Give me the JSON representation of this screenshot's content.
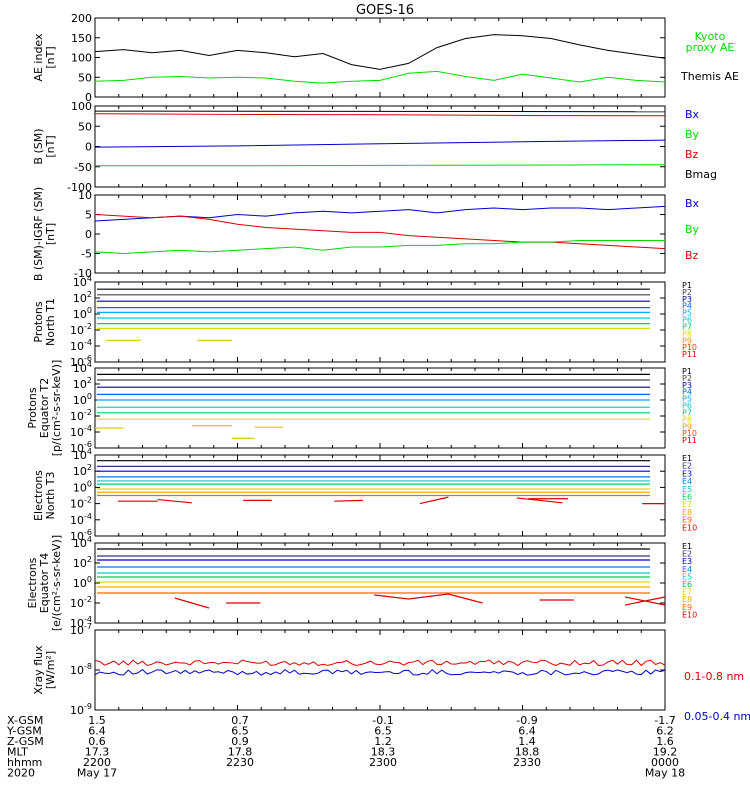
{
  "title": "GOES-16",
  "colors": {
    "black": "#000000",
    "red": "#dd0000",
    "green": "#00dd00",
    "blue": "#0000cc",
    "p": [
      "#000000",
      "#444444",
      "#0000aa",
      "#0066ff",
      "#00aaff",
      "#00cccc",
      "#00cc66",
      "#dddd00",
      "#ff9900",
      "#ff4400",
      "#dd0000"
    ],
    "e": [
      "#000000",
      "#333388",
      "#0000cc",
      "#0077ff",
      "#00cccc",
      "#00cc66",
      "#dddd00",
      "#ffaa00",
      "#ff6600",
      "#dd0000",
      "#aa0000"
    ]
  },
  "time_axis": {
    "xlabels": [
      "X-GSM",
      "Y-GSM",
      "Z-GSM",
      "MLT",
      "hhmm",
      "2020"
    ],
    "columns": [
      [
        "1.5",
        "6.4",
        "0.6",
        "17.3",
        "2200",
        "May 17"
      ],
      [
        "0.7",
        "6.5",
        "0.9",
        "17.8",
        "2230",
        ""
      ],
      [
        "-0.1",
        "6.5",
        "1.2",
        "18.3",
        "2300",
        ""
      ],
      [
        "-0.9",
        "6.4",
        "1.4",
        "18.8",
        "2330",
        ""
      ],
      [
        "-1.7",
        "6.2",
        "1.6",
        "19.2",
        "0000",
        "May 18"
      ]
    ]
  },
  "chart_data": [
    {
      "type": "line",
      "id": "ae",
      "ylabel": [
        "AE index",
        "[nT]"
      ],
      "ylim": [
        0,
        200
      ],
      "yticks": [
        "0",
        "50",
        "100",
        "150",
        "200"
      ],
      "legend": [
        "Kyoto proxy AE",
        "Themis AE"
      ],
      "series": [
        {
          "name": "Themis AE",
          "x": [
            0,
            0.05,
            0.1,
            0.15,
            0.2,
            0.25,
            0.3,
            0.35,
            0.4,
            0.45,
            0.5,
            0.55,
            0.6,
            0.65,
            0.7,
            0.75,
            0.8,
            0.85,
            0.9,
            0.95,
            1.0
          ],
          "y": [
            115,
            120,
            112,
            118,
            105,
            118,
            112,
            102,
            110,
            82,
            70,
            85,
            125,
            148,
            158,
            155,
            148,
            132,
            118,
            108,
            98
          ]
        },
        {
          "name": "Kyoto proxy AE",
          "x": [
            0,
            0.05,
            0.1,
            0.15,
            0.2,
            0.25,
            0.3,
            0.35,
            0.4,
            0.45,
            0.5,
            0.55,
            0.6,
            0.65,
            0.7,
            0.75,
            0.8,
            0.85,
            0.9,
            0.95,
            1.0
          ],
          "y": [
            40,
            42,
            50,
            52,
            48,
            50,
            48,
            40,
            35,
            40,
            42,
            60,
            65,
            52,
            42,
            58,
            48,
            38,
            50,
            42,
            38
          ]
        }
      ]
    },
    {
      "type": "line",
      "id": "bsm",
      "ylabel": [
        "B (SM)",
        "[nT]"
      ],
      "ylim": [
        -120,
        120
      ],
      "yticks": [
        "-100",
        "-50",
        "0",
        "50",
        "100"
      ],
      "legend": [
        "Bx",
        "By",
        "Bz",
        "Bmag"
      ],
      "series": [
        {
          "name": "Bmag",
          "x": [
            0,
            1
          ],
          "y": [
            105,
            103
          ]
        },
        {
          "name": "Bz",
          "x": [
            0,
            0.25,
            0.5,
            0.75,
            1
          ],
          "y": [
            97,
            95,
            94,
            92,
            91
          ]
        },
        {
          "name": "Bx",
          "x": [
            0,
            0.25,
            0.5,
            0.75,
            1
          ],
          "y": [
            -2,
            2,
            8,
            14,
            19
          ]
        },
        {
          "name": "By",
          "x": [
            0,
            0.25,
            0.5,
            0.75,
            1
          ],
          "y": [
            -57,
            -57,
            -56,
            -55,
            -54
          ]
        }
      ]
    },
    {
      "type": "line",
      "id": "bigrf",
      "ylabel": [
        "B (SM)-IGRF (SM)",
        "[nT]"
      ],
      "ylim": [
        -12,
        12
      ],
      "yticks": [
        "-10",
        "-5",
        "0",
        "5",
        "10"
      ],
      "legend": [
        "Bx",
        "By",
        "Bz"
      ],
      "series": [
        {
          "name": "Bx",
          "x": [
            0,
            0.05,
            0.1,
            0.15,
            0.2,
            0.25,
            0.3,
            0.35,
            0.4,
            0.45,
            0.5,
            0.55,
            0.6,
            0.65,
            0.7,
            0.75,
            0.8,
            0.85,
            0.9,
            0.95,
            1.0
          ],
          "y": [
            4,
            4.5,
            5,
            5.5,
            5,
            6,
            5.5,
            6.5,
            7,
            6.5,
            7,
            7.5,
            6.5,
            7.5,
            8,
            7.5,
            8,
            8,
            7.5,
            8,
            8.5
          ]
        },
        {
          "name": "Bz",
          "x": [
            0,
            0.05,
            0.1,
            0.15,
            0.2,
            0.25,
            0.3,
            0.35,
            0.4,
            0.45,
            0.5,
            0.55,
            0.6,
            0.65,
            0.7,
            0.75,
            0.8,
            0.85,
            0.9,
            0.95,
            1.0
          ],
          "y": [
            6,
            5.5,
            5,
            5.5,
            4.5,
            3,
            2,
            1.5,
            1,
            0.5,
            0.5,
            -0.5,
            -1,
            -1.5,
            -2,
            -2.5,
            -2.5,
            -3,
            -3.5,
            -4,
            -4.5
          ]
        },
        {
          "name": "By",
          "x": [
            0,
            0.05,
            0.1,
            0.15,
            0.2,
            0.25,
            0.3,
            0.35,
            0.4,
            0.45,
            0.5,
            0.55,
            0.6,
            0.65,
            0.7,
            0.75,
            0.8,
            0.85,
            0.9,
            0.95,
            1.0
          ],
          "y": [
            -5.5,
            -6,
            -5.5,
            -5,
            -5.5,
            -5,
            -4.5,
            -4,
            -5,
            -4,
            -4,
            -3.5,
            -3.5,
            -3,
            -3,
            -2.5,
            -2.5,
            -2,
            -2,
            -2,
            -2
          ]
        }
      ]
    },
    {
      "type": "line",
      "id": "pt1",
      "ylabel": [
        "Protons",
        "North T1"
      ],
      "log": true,
      "ylim": [
        -6,
        4
      ],
      "yticks": [
        "10^-6",
        "10^-4",
        "10^-2",
        "10^0",
        "10^2",
        "10^4"
      ],
      "legend": [
        "P1",
        "P2",
        "P3",
        "P4",
        "P5",
        "P6",
        "P7",
        "P8",
        "P9",
        "P10",
        "P11"
      ],
      "levels": [
        3.1,
        2.4,
        1.6,
        0.8,
        0.2,
        -0.5,
        -1.2,
        -1.8
      ],
      "fragments": [
        {
          "x": [
            0.02,
            0.08
          ],
          "y": [
            -3.3,
            -3.3
          ]
        },
        {
          "x": [
            0.18,
            0.24
          ],
          "y": [
            -3.3,
            -3.3
          ]
        }
      ]
    },
    {
      "type": "line",
      "id": "pt2",
      "ylabel": [
        "Protons",
        "Equator T2",
        "[p/(cm²-s-sr-keV)]"
      ],
      "log": true,
      "ylim": [
        -6,
        4
      ],
      "yticks": [
        "10^-6",
        "10^-4",
        "10^-2",
        "10^0",
        "10^2",
        "10^4"
      ],
      "legend": [
        "P1",
        "P2",
        "P3",
        "P4",
        "P5",
        "P6",
        "P7",
        "P8",
        "P9",
        "P10",
        "P11"
      ],
      "levels": [
        3.2,
        2.5,
        1.6,
        0.7,
        0,
        -0.9,
        -1.6,
        -2.4
      ],
      "fragments": [
        {
          "x": [
            0,
            0.05
          ],
          "y": [
            -3.5,
            -3.5
          ]
        },
        {
          "x": [
            0.17,
            0.24
          ],
          "y": [
            -3.2,
            -3.2
          ]
        },
        {
          "x": [
            0.28,
            0.33
          ],
          "y": [
            -3.4,
            -3.4
          ]
        },
        {
          "x": [
            0.24,
            0.28
          ],
          "y": [
            -4.8,
            -4.8
          ]
        }
      ]
    },
    {
      "type": "line",
      "id": "et3",
      "ylabel": [
        "Electrons",
        "North T3"
      ],
      "log": true,
      "ylim": [
        -6,
        4
      ],
      "yticks": [
        "10^-6",
        "10^-4",
        "10^-2",
        "10^0",
        "10^2",
        "10^4"
      ],
      "legend": [
        "E1",
        "E2",
        "E3",
        "E4",
        "E5",
        "E6",
        "E7",
        "E8",
        "E9",
        "E10"
      ],
      "levels": [
        3.3,
        2.6,
        2.0,
        1.3,
        0.8,
        0.4,
        -0.2,
        -0.6,
        -1.0
      ],
      "fragments": [
        {
          "x": [
            0.04,
            0.11
          ],
          "y": [
            -1.7,
            -1.7
          ]
        },
        {
          "x": [
            0.11,
            0.17
          ],
          "y": [
            -1.5,
            -1.9
          ]
        },
        {
          "x": [
            0.26,
            0.31
          ],
          "y": [
            -1.6,
            -1.6
          ]
        },
        {
          "x": [
            0.42,
            0.47
          ],
          "y": [
            -1.7,
            -1.6
          ]
        },
        {
          "x": [
            0.57,
            0.62
          ],
          "y": [
            -2,
            -1.2
          ]
        },
        {
          "x": [
            0.76,
            0.83
          ],
          "y": [
            -1.4,
            -1.4
          ]
        },
        {
          "x": [
            0.74,
            0.82
          ],
          "y": [
            -1.3,
            -1.9
          ]
        },
        {
          "x": [
            0.96,
            1.0
          ],
          "y": [
            -2,
            -2
          ]
        }
      ]
    },
    {
      "type": "line",
      "id": "et4",
      "ylabel": [
        "Electrons",
        "Equator T4",
        "[e/(cm²-s-sr-keV)]"
      ],
      "log": true,
      "ylim": [
        -4,
        4
      ],
      "yticks": [
        "10^-4",
        "10^-2",
        "10^0",
        "10^2",
        "10^4"
      ],
      "legend": [
        "E1",
        "E2",
        "E3",
        "E4",
        "E5",
        "E6",
        "E7",
        "E8",
        "E9",
        "E10"
      ],
      "levels": [
        3.4,
        2.7,
        2.3,
        1.6,
        1.0,
        0.6,
        0.1,
        -0.4,
        -1.0
      ],
      "fragments": [
        {
          "x": [
            0.14,
            0.2
          ],
          "y": [
            -1.5,
            -2.5
          ]
        },
        {
          "x": [
            0.23,
            0.29
          ],
          "y": [
            -2,
            -2
          ]
        },
        {
          "x": [
            0.49,
            0.55,
            0.62,
            0.68
          ],
          "y": [
            -1.2,
            -1.6,
            -1.1,
            -2
          ]
        },
        {
          "x": [
            0.78,
            0.84
          ],
          "y": [
            -1.7,
            -1.7
          ]
        },
        {
          "x": [
            0.93,
            1.0
          ],
          "y": [
            -1.4,
            -2.2
          ]
        },
        {
          "x": [
            0.93,
            1.0
          ],
          "y": [
            -2.2,
            -1.4
          ]
        }
      ]
    },
    {
      "type": "line",
      "id": "xray",
      "ylabel": [
        "Xray flux",
        "[W/m²]"
      ],
      "log": true,
      "ylim": [
        -9,
        -7
      ],
      "yticks": [
        "10^-9",
        "10^-8",
        "10^-7"
      ],
      "legend": [
        "0.1-0.8 nm",
        "0.05-0.4 nm"
      ],
      "series": [
        {
          "name": "0.1-0.8 nm",
          "level": -7.82
        },
        {
          "name": "0.05-0.4 nm",
          "level": -8.06
        }
      ]
    }
  ]
}
